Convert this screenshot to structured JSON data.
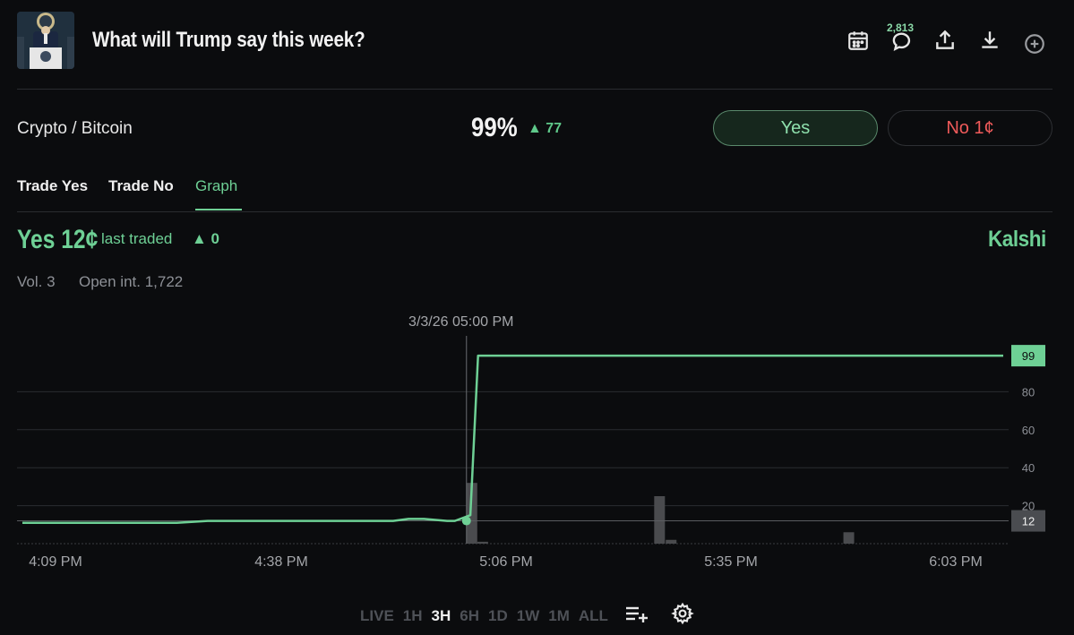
{
  "header": {
    "title": "What will Trump say this week?",
    "comment_count": "2,813",
    "icons": [
      "calendar-icon",
      "comment-icon",
      "share-icon",
      "download-icon",
      "add-icon"
    ]
  },
  "market": {
    "category": "Crypto / Bitcoin",
    "probability": "99%",
    "probability_change": "▲ 77",
    "yes_label": "Yes",
    "no_label": "No 1¢"
  },
  "tabs": [
    {
      "label": "Trade Yes",
      "active": false
    },
    {
      "label": "Trade No",
      "active": false
    },
    {
      "label": "Graph",
      "active": true
    }
  ],
  "graph_header": {
    "yes_price": "Yes 12¢",
    "last_traded": "last traded",
    "last_traded_change": "▲ 0",
    "brand": "Kalshi",
    "volume": "Vol. 3",
    "open_interest": "Open int. 1,722"
  },
  "chart_data": {
    "type": "line",
    "crosshair_label": "3/3/26 05:00 PM",
    "x_tick_labels": [
      "4:09 PM",
      "4:38 PM",
      "5:06 PM",
      "5:35 PM",
      "6:03 PM"
    ],
    "y_tick_labels": [
      "20",
      "40",
      "60",
      "80"
    ],
    "ylim": [
      0,
      100
    ],
    "current_value_label": "99",
    "crosshair_value_label": "12",
    "series": [
      {
        "x_minutes": [
          0,
          20,
          24,
          48,
          50,
          52,
          55,
          56,
          58,
          59,
          60,
          100,
          127
        ],
        "values": [
          11,
          11,
          12,
          12,
          13,
          13,
          12,
          12,
          15,
          99,
          99,
          99,
          99
        ]
      }
    ],
    "volume_bars": [
      {
        "x_minutes": 58.2,
        "value": 32
      },
      {
        "x_minutes": 59.6,
        "value": 1
      },
      {
        "x_minutes": 82.5,
        "value": 25
      },
      {
        "x_minutes": 84.0,
        "value": 2
      },
      {
        "x_minutes": 107.0,
        "value": 6
      }
    ],
    "crosshair_x_minutes": 57.5,
    "colors": {
      "line": "#6ed095",
      "grid": "#2a2c30",
      "volume": "#4a4b4e"
    }
  },
  "range_selector": {
    "options": [
      "LIVE",
      "1H",
      "3H",
      "6H",
      "1D",
      "1W",
      "1M",
      "ALL"
    ],
    "active": "3H"
  }
}
